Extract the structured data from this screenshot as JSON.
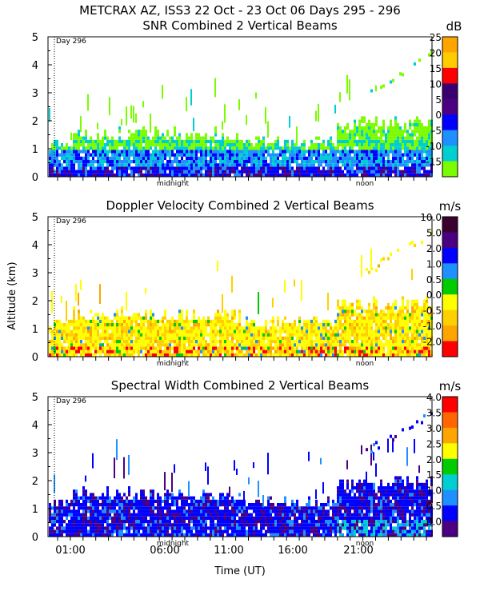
{
  "header": {
    "title": "METCRAX AZ, ISS3  22 Oct - 23 Oct 06 Days 295 - 296"
  },
  "chart_data": [
    {
      "type": "heatmap",
      "title": "SNR Combined 2 Vertical Beams",
      "unit": "dB",
      "ylim": [
        0,
        5
      ],
      "yticks": [
        "5",
        "4",
        "3",
        "2",
        "1",
        "0"
      ],
      "day_marker": "Day 296",
      "time_labels": [
        "midnight",
        "noon"
      ],
      "colorbar": [
        {
          "label": "25",
          "color": "#ffa500"
        },
        {
          "label": "20",
          "color": "#ffcc00"
        },
        {
          "label": "15",
          "color": "#ff0000"
        },
        {
          "label": "10",
          "color": "#3a006f"
        },
        {
          "label": "5",
          "color": "#4b0082"
        },
        {
          "label": "0",
          "color": "#0000ff"
        },
        {
          "label": "-5",
          "color": "#1e90ff"
        },
        {
          "label": "-10",
          "color": "#00ced1"
        },
        {
          "label": "-15",
          "color": "#7cfc00"
        }
      ]
    },
    {
      "type": "heatmap",
      "title": "Doppler Velocity Combined 2 Vertical Beams",
      "unit": "m/s",
      "ylim": [
        0,
        5
      ],
      "yticks": [
        "5",
        "4",
        "3",
        "2",
        "1",
        "0"
      ],
      "day_marker": "Day 296",
      "time_labels": [
        "midnight",
        "noon"
      ],
      "colorbar": [
        {
          "label": "10.0",
          "color": "#3a0030"
        },
        {
          "label": "5.0",
          "color": "#4b0082"
        },
        {
          "label": "2.0",
          "color": "#0000ff"
        },
        {
          "label": "1.0",
          "color": "#1e90ff"
        },
        {
          "label": "0.5",
          "color": "#00cc00"
        },
        {
          "label": "0.0",
          "color": "#ffff00"
        },
        {
          "label": "-0.5",
          "color": "#ffd000"
        },
        {
          "label": "-1.0",
          "color": "#ffa500"
        },
        {
          "label": "-2.0",
          "color": "#ff0000"
        }
      ]
    },
    {
      "type": "heatmap",
      "title": "Spectral Width Combined 2 Vertical Beams",
      "unit": "m/s",
      "ylim": [
        0,
        5
      ],
      "yticks": [
        "5",
        "4",
        "3",
        "2",
        "1",
        "0"
      ],
      "day_marker": "Day 296",
      "time_labels": [
        "midnight",
        "noon"
      ],
      "colorbar": [
        {
          "label": "4.0",
          "color": "#ff0000"
        },
        {
          "label": "3.5",
          "color": "#ff6600"
        },
        {
          "label": "3.0",
          "color": "#ffa500"
        },
        {
          "label": "2.5",
          "color": "#ffff00"
        },
        {
          "label": "2.0",
          "color": "#00cc00"
        },
        {
          "label": "1.5",
          "color": "#00ced1"
        },
        {
          "label": "1.0",
          "color": "#1e90ff"
        },
        {
          "label": "0.5",
          "color": "#0000ff"
        },
        {
          "label": "0.0",
          "color": "#4b0082"
        }
      ]
    }
  ],
  "shared_axes": {
    "ylabel": "Altitude (km)",
    "xlabel": "Time (UT)",
    "xticks": [
      "01:00",
      "06:00",
      "11:00",
      "16:00",
      "21:00"
    ]
  }
}
